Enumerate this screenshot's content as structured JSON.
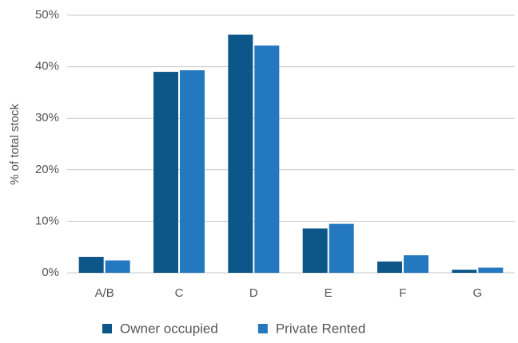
{
  "chart_data": {
    "type": "bar",
    "y_label": "% of total stock",
    "categories": [
      "A/B",
      "C",
      "D",
      "E",
      "F",
      "G"
    ],
    "series": [
      {
        "name": "Owner occupied",
        "color": "#0d5689",
        "values": [
          3.1,
          39.0,
          46.2,
          8.6,
          2.2,
          0.6
        ]
      },
      {
        "name": "Private Rented",
        "color": "#2478c0",
        "values": [
          2.4,
          39.3,
          44.1,
          9.5,
          3.4,
          1.0
        ]
      }
    ],
    "ylim": [
      0,
      50
    ],
    "yticks": [
      {
        "value": 0,
        "label": "0%"
      },
      {
        "value": 10,
        "label": "10%"
      },
      {
        "value": 20,
        "label": "20%"
      },
      {
        "value": 30,
        "label": "30%"
      },
      {
        "value": 40,
        "label": "40%"
      },
      {
        "value": 50,
        "label": "50%"
      }
    ],
    "grid": true
  }
}
